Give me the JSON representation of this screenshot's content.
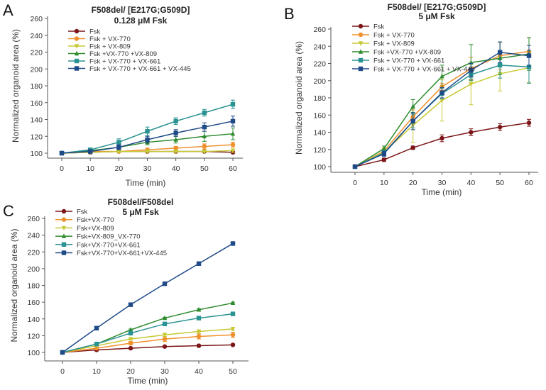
{
  "colors": {
    "fsk": "#7b1518",
    "vx770": "#f0902c",
    "vx809": "#c6c935",
    "vx770_809": "#2e8b2e",
    "vx770_661": "#2a9292",
    "vx770_661_445": "#1f4a88",
    "axis": "#555555"
  },
  "chart_data": [
    {
      "panel": "A",
      "type": "line",
      "title": "F508del/ [E217G;G509D]",
      "subtitle": "0.128 μM Fsk",
      "xlabel": "Time (min)",
      "ylabel": "Normalized organoid area (%)",
      "x": [
        0,
        10,
        20,
        30,
        40,
        50,
        60
      ],
      "xticks": [
        "0",
        "10",
        "20",
        "30",
        "40",
        "50",
        "60"
      ],
      "ylim": [
        100,
        260
      ],
      "yticks": [
        "100",
        "120",
        "140",
        "160",
        "180",
        "200",
        "220",
        "240",
        "260"
      ],
      "legend_position": "top-left",
      "series": [
        {
          "name": "Fsk",
          "key": "fsk",
          "marker": "circle",
          "values": [
            100,
            101,
            102,
            102,
            102,
            102,
            101
          ],
          "errors": [
            0,
            1,
            1,
            1,
            1,
            1,
            1
          ]
        },
        {
          "name": "Fsk + VX-770",
          "key": "vx770",
          "marker": "circle",
          "values": [
            100,
            102,
            102,
            104,
            106,
            108,
            110
          ],
          "errors": [
            0,
            1,
            1,
            2,
            2,
            3,
            3
          ]
        },
        {
          "name": "Fsk + VX-809",
          "key": "vx809",
          "marker": "triangle-down",
          "values": [
            100,
            101,
            102,
            102,
            102,
            102,
            103
          ],
          "errors": [
            0,
            1,
            1,
            1,
            1,
            1,
            2
          ]
        },
        {
          "name": "Fsk +VX-770 +VX-809",
          "key": "vx770_809",
          "marker": "triangle-up",
          "values": [
            100,
            103,
            107,
            113,
            116,
            120,
            123
          ],
          "errors": [
            0,
            1,
            2,
            3,
            4,
            6,
            7
          ]
        },
        {
          "name": "Fsk + VX-770 + VX-661",
          "key": "vx770_661",
          "marker": "square",
          "values": [
            100,
            104,
            113,
            126,
            138,
            148,
            158
          ],
          "errors": [
            0,
            1,
            4,
            5,
            4,
            4,
            5
          ]
        },
        {
          "name": "Fsk + VX-770 + VX-661 + VX-445",
          "key": "vx770_661_445",
          "marker": "square",
          "values": [
            100,
            102,
            107,
            116,
            124,
            131,
            138
          ],
          "errors": [
            0,
            1,
            3,
            4,
            4,
            5,
            6
          ]
        }
      ]
    },
    {
      "panel": "B",
      "type": "line",
      "title": "F508del/ [E217G;G509D]",
      "subtitle": "5 μM Fsk",
      "xlabel": "Time (min)",
      "ylabel": "Normalized organoid area (%)",
      "x": [
        0,
        10,
        20,
        30,
        40,
        50,
        60
      ],
      "xticks": [
        "0",
        "10",
        "20",
        "30",
        "40",
        "50",
        "60"
      ],
      "ylim": [
        100,
        260
      ],
      "yticks": [
        "100",
        "120",
        "140",
        "160",
        "180",
        "200",
        "220",
        "240",
        "260"
      ],
      "legend_position": "top-left",
      "series": [
        {
          "name": "Fsk",
          "key": "fsk",
          "marker": "circle",
          "values": [
            100,
            108,
            122,
            133,
            140,
            146,
            151
          ],
          "errors": [
            0,
            2,
            2,
            4,
            4,
            4,
            4
          ]
        },
        {
          "name": "Fsk + VX-770",
          "key": "vx770",
          "marker": "circle",
          "values": [
            100,
            118,
            158,
            193,
            214,
            229,
            234
          ],
          "errors": [
            0,
            4,
            8,
            4,
            13,
            16,
            16
          ]
        },
        {
          "name": "Fsk + VX-809",
          "key": "vx809",
          "marker": "triangle-down",
          "values": [
            100,
            117,
            148,
            177,
            196,
            208,
            215
          ],
          "errors": [
            0,
            4,
            20,
            24,
            24,
            20,
            17
          ]
        },
        {
          "name": "Fsk +VX-770 +VX-809",
          "key": "vx770_809",
          "marker": "triangle-up",
          "values": [
            100,
            121,
            170,
            205,
            221,
            226,
            231
          ],
          "errors": [
            0,
            3,
            8,
            13,
            21,
            19,
            19
          ]
        },
        {
          "name": "Fsk + VX-770 + VX-661",
          "key": "vx770_661",
          "marker": "square",
          "values": [
            100,
            116,
            153,
            185,
            207,
            218,
            216
          ],
          "errors": [
            0,
            3,
            8,
            6,
            5,
            15,
            19
          ]
        },
        {
          "name": "Fsk + VX-770 + VX-661 + VX-445",
          "key": "vx770_661_445",
          "marker": "square",
          "values": [
            100,
            115,
            153,
            186,
            212,
            233,
            229
          ],
          "errors": [
            0,
            3,
            10,
            6,
            8,
            12,
            12
          ]
        }
      ]
    },
    {
      "panel": "C",
      "type": "line",
      "title": "F508del/F508del",
      "subtitle": "5 μM Fsk",
      "xlabel": "Time (min)",
      "ylabel": "Normalized organoid area (%)",
      "x": [
        0,
        10,
        20,
        30,
        40,
        50
      ],
      "xticks": [
        "0",
        "10",
        "20",
        "30",
        "40",
        "50"
      ],
      "ylim": [
        100,
        260
      ],
      "yticks": [
        "100",
        "120",
        "140",
        "160",
        "180",
        "200",
        "220",
        "240",
        "260"
      ],
      "legend_position": "top-left",
      "series": [
        {
          "name": "Fsk",
          "key": "fsk",
          "marker": "circle",
          "values": [
            100,
            103,
            105,
            107,
            108,
            109
          ],
          "errors": [
            0,
            1,
            1,
            1,
            1,
            1
          ]
        },
        {
          "name": "Fsk+VX-770",
          "key": "vx770",
          "marker": "circle",
          "values": [
            100,
            105,
            111,
            116,
            119,
            121
          ],
          "errors": [
            0,
            1,
            2,
            3,
            3,
            3
          ]
        },
        {
          "name": "Fsk+VX-809",
          "key": "vx809",
          "marker": "triangle-down",
          "values": [
            100,
            108,
            116,
            121,
            125,
            128
          ],
          "errors": [
            0,
            1,
            1,
            2,
            2,
            2
          ]
        },
        {
          "name": "Fsk+VX-809_VX-770",
          "key": "vx770_809",
          "marker": "triangle-up",
          "values": [
            100,
            110,
            127,
            141,
            151,
            159
          ],
          "errors": [
            0,
            1,
            1,
            1,
            1,
            1
          ]
        },
        {
          "name": "Fsk+VX-770+VX-661",
          "key": "vx770_661",
          "marker": "square",
          "values": [
            100,
            110,
            123,
            134,
            141,
            146
          ],
          "errors": [
            0,
            1,
            1,
            1,
            1,
            1
          ]
        },
        {
          "name": "Fsk+VX-770+VX-661+VX-445",
          "key": "vx770_661_445",
          "marker": "square",
          "values": [
            100,
            129,
            157,
            182,
            206,
            230
          ],
          "errors": [
            0,
            1,
            1,
            1,
            1,
            1
          ]
        }
      ]
    }
  ]
}
